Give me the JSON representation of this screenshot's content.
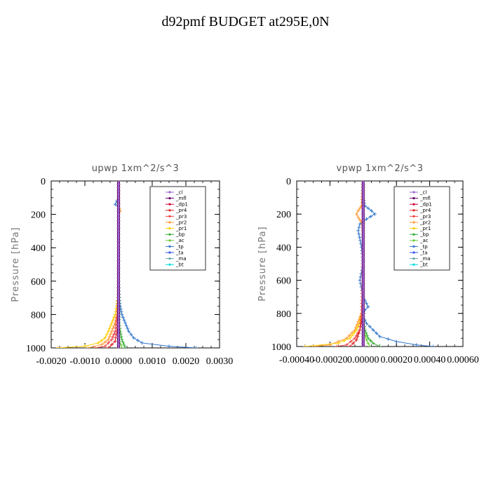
{
  "figure": {
    "title": "d92pmf  BUDGET at295E,0N"
  },
  "legend_entries": [
    {
      "label": "_cl",
      "color": "#9966cc"
    },
    {
      "label": "_mfl",
      "color": "#660066"
    },
    {
      "label": "_dp1",
      "color": "#cc0033"
    },
    {
      "label": "_pr4",
      "color": "#dd2222"
    },
    {
      "label": "_pr3",
      "color": "#ee4444"
    },
    {
      "label": "_pr2",
      "color": "#ff9933"
    },
    {
      "label": "_pr1",
      "color": "#ffcc00"
    },
    {
      "label": "_bp",
      "color": "#33aa33"
    },
    {
      "label": "_ac",
      "color": "#66cc33"
    },
    {
      "label": "_tp",
      "color": "#3377cc"
    },
    {
      "label": "_ta",
      "color": "#3355ee"
    },
    {
      "label": "_ma",
      "color": "#66aaaa"
    },
    {
      "label": "_bt",
      "color": "#00dddd"
    }
  ],
  "chart_data": [
    {
      "type": "line",
      "title": "upwp    1xm^2/s^3",
      "xlabel": "",
      "ylabel": "Pressure [hPa]",
      "xlim": [
        -0.002,
        0.003
      ],
      "ylim": [
        1000,
        0
      ],
      "xticks": [
        -0.002,
        -0.001,
        0.0,
        0.001,
        0.002,
        0.003
      ],
      "xtick_labels": [
        "-0.0020",
        "-0.0010",
        "0.0000",
        "0.0010",
        "0.0020",
        "0.0030"
      ],
      "yticks": [
        0,
        200,
        400,
        600,
        800,
        1000
      ],
      "ytick_labels": [
        "0",
        "200",
        "400",
        "600",
        "800",
        "1000"
      ],
      "legend_position": "top-right",
      "series": [
        {
          "name": "_tp",
          "pressure": [
            0,
            100,
            140,
            160,
            200,
            300,
            400,
            500,
            600,
            700,
            750,
            800,
            850,
            900,
            940,
            970,
            990,
            1000
          ],
          "values": [
            0.0,
            0.0,
            -0.0001,
            0.0,
            0.0,
            0.0,
            0.0,
            0.0,
            0.0,
            2e-05,
            5e-05,
            0.0001,
            0.0002,
            0.0003,
            0.00045,
            0.0007,
            0.0015,
            0.0023
          ]
        },
        {
          "name": "_pr1",
          "pressure": [
            0,
            200,
            400,
            600,
            700,
            750,
            800,
            850,
            900,
            940,
            970,
            990,
            1000
          ],
          "values": [
            0.0,
            0.0,
            0.0,
            0.0,
            -2e-05,
            -5e-05,
            -0.0001,
            -0.0002,
            -0.0003,
            -0.0004,
            -0.0006,
            -0.001,
            -0.0018
          ]
        },
        {
          "name": "_pr2",
          "pressure": [
            0,
            150,
            180,
            200,
            400,
            600,
            700,
            800,
            850,
            900,
            950,
            980,
            1000
          ],
          "values": [
            0.0,
            0.0,
            5e-05,
            0.0,
            0.0,
            0.0,
            -1e-05,
            -5e-05,
            -0.0001,
            -0.0002,
            -0.0003,
            -0.0005,
            -0.0009
          ]
        },
        {
          "name": "_pr3",
          "pressure": [
            0,
            400,
            700,
            800,
            900,
            950,
            990,
            1000
          ],
          "values": [
            0.0,
            0.0,
            0.0,
            -3e-05,
            -0.0001,
            -0.0002,
            -0.0004,
            -0.0007
          ]
        },
        {
          "name": "_pr4",
          "pressure": [
            0,
            400,
            800,
            900,
            960,
            1000
          ],
          "values": [
            0.0,
            0.0,
            -1e-05,
            -5e-05,
            -0.0001,
            -0.0003
          ]
        },
        {
          "name": "_bp",
          "pressure": [
            0,
            600,
            850,
            900,
            950,
            1000
          ],
          "values": [
            0.0,
            0.0,
            2e-05,
            5e-05,
            0.0001,
            0.0002
          ]
        },
        {
          "name": "_ac",
          "pressure": [
            0,
            900,
            960,
            1000
          ],
          "values": [
            0.0,
            0.0,
            3e-05,
            0.0001
          ]
        },
        {
          "name": "_mfl",
          "pressure": [
            0,
            1000
          ],
          "values": [
            0.0,
            0.0
          ]
        },
        {
          "name": "_cl",
          "pressure": [
            0,
            1000
          ],
          "values": [
            0.0,
            0.0
          ]
        }
      ]
    },
    {
      "type": "line",
      "title": "vpwp    1xm^2/s^3",
      "xlabel": "",
      "ylabel": "Pressure [hPa]",
      "xlim": [
        -0.0004,
        0.0006
      ],
      "ylim": [
        1000,
        0
      ],
      "xticks": [
        -0.0004,
        -0.0002,
        0.0,
        0.0002,
        0.0004,
        0.0006
      ],
      "xtick_labels": [
        "-0.00040",
        "-0.00020",
        "0.00000",
        "0.00020",
        "0.00040",
        "0.00060"
      ],
      "yticks": [
        0,
        200,
        400,
        600,
        800,
        1000
      ],
      "ytick_labels": [
        "0",
        "200",
        "400",
        "600",
        "800",
        "1000"
      ],
      "legend_position": "top-right",
      "series": [
        {
          "name": "_tp",
          "pressure": [
            0,
            100,
            150,
            180,
            200,
            230,
            260,
            300,
            400,
            500,
            600,
            700,
            740,
            760,
            780,
            820,
            860,
            900,
            940,
            970,
            990,
            1000
          ],
          "values": [
            0.0,
            0.0,
            1e-05,
            5e-05,
            7e-05,
            2e-05,
            -2e-05,
            -3e-05,
            -1e-05,
            0.0,
            -2e-05,
            0.0,
            2e-05,
            3e-05,
            1e-05,
            0.0,
            2e-05,
            6e-05,
            0.0001,
            0.0002,
            0.00032,
            0.00042
          ]
        },
        {
          "name": "_pr2",
          "pressure": [
            0,
            150,
            180,
            200,
            220,
            250,
            300,
            400,
            600,
            800,
            850,
            900,
            950,
            990,
            1000
          ],
          "values": [
            0.0,
            -1e-05,
            -3e-05,
            -4e-05,
            -3e-05,
            -1e-05,
            0.0,
            0.0,
            0.0,
            -1e-05,
            -3e-05,
            -5e-05,
            -0.0001,
            -0.0002,
            -0.0003
          ]
        },
        {
          "name": "_pr1",
          "pressure": [
            0,
            700,
            800,
            850,
            900,
            950,
            980,
            1000
          ],
          "values": [
            0.0,
            0.0,
            -1e-05,
            -2e-05,
            -4e-05,
            -8e-05,
            -0.00015,
            -0.00035
          ]
        },
        {
          "name": "_pr3",
          "pressure": [
            0,
            400,
            800,
            900,
            950,
            990,
            1000
          ],
          "values": [
            0.0,
            0.0,
            -1e-05,
            -2e-05,
            -5e-05,
            -0.0001,
            -0.00016
          ]
        },
        {
          "name": "_pr4",
          "pressure": [
            0,
            600,
            800,
            900,
            960,
            1000
          ],
          "values": [
            0.0,
            0.0,
            0.0,
            -2e-05,
            -4e-05,
            -8e-05
          ]
        },
        {
          "name": "_bp",
          "pressure": [
            0,
            800,
            900,
            950,
            980,
            1000
          ],
          "values": [
            0.0,
            0.0,
            1e-05,
            3e-05,
            6e-05,
            0.0001
          ]
        },
        {
          "name": "_ac",
          "pressure": [
            0,
            900,
            960,
            1000
          ],
          "values": [
            0.0,
            0.0,
            2e-05,
            4e-05
          ]
        },
        {
          "name": "_mfl",
          "pressure": [
            0,
            1000
          ],
          "values": [
            0.0,
            0.0
          ]
        },
        {
          "name": "_cl",
          "pressure": [
            0,
            1000
          ],
          "values": [
            0.0,
            0.0
          ]
        }
      ]
    }
  ]
}
